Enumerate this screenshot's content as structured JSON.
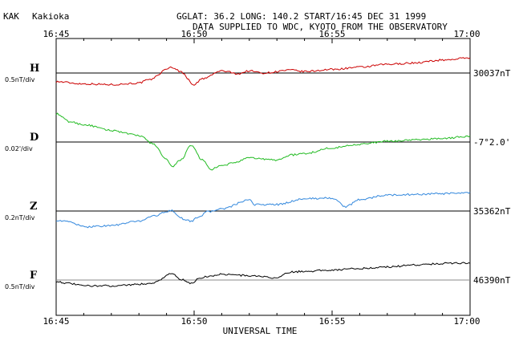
{
  "header": {
    "station_code": "KAK",
    "station_name": "Kakioka",
    "coords_line": "GGLAT:  36.2 LONG: 140.2 START/16:45 DEC 31 1999",
    "source_line": "DATA SUPPLIED TO WDC, KYOTO FROM THE OBSERVATORY"
  },
  "chart_data": {
    "type": "line",
    "xlabel": "UNIVERSAL TIME",
    "x_ticks": [
      "16:45",
      "16:50",
      "16:55",
      "17:00"
    ],
    "xlim_minutes": [
      0,
      15
    ],
    "grid": false,
    "series": [
      {
        "name": "H",
        "scale_label": "0.5nT/div",
        "baseline_label": "30037nT",
        "color": "#cc0000",
        "t": [
          0,
          1,
          2,
          3,
          3.3,
          4.2,
          4.5,
          5,
          5.3,
          6,
          6.6,
          7,
          7.5,
          8.5,
          9,
          10,
          11,
          12,
          13,
          14,
          15
        ],
        "y": [
          -1.2,
          -1.5,
          -1.6,
          -1.4,
          -1.0,
          0.8,
          0.2,
          -1.6,
          -0.8,
          0.3,
          -0.1,
          0.3,
          0.0,
          0.4,
          0.2,
          0.5,
          0.8,
          1.2,
          1.4,
          1.8,
          2.1
        ]
      },
      {
        "name": "D",
        "scale_label": "0.02'/div",
        "baseline_label": "-7°2.0'",
        "color": "#22bb22",
        "t": [
          0,
          0.5,
          1,
          2,
          3,
          3.5,
          4,
          4.2,
          4.5,
          4.9,
          5.3,
          5.6,
          6,
          6.5,
          7,
          8,
          8.5,
          9,
          10,
          11,
          12,
          13,
          14,
          15
        ],
        "y": [
          3.9,
          2.8,
          2.4,
          1.6,
          0.9,
          -0.2,
          -2.4,
          -3.5,
          -2.5,
          -0.5,
          -2.5,
          -3.8,
          -3.3,
          -2.8,
          -2.2,
          -2.5,
          -1.8,
          -1.6,
          -0.8,
          -0.3,
          0.1,
          0.3,
          0.5,
          0.8
        ]
      },
      {
        "name": "Z",
        "scale_label": "0.2nT/div",
        "baseline_label": "35362nT",
        "color": "#3388dd",
        "t": [
          0,
          0.5,
          1,
          1.5,
          2,
          3,
          3.5,
          4.2,
          4.5,
          4.9,
          5.2,
          5.5,
          6,
          7,
          7.2,
          8,
          9,
          10,
          10.5,
          11,
          12,
          13,
          14,
          15
        ],
        "y": [
          -1.3,
          -1.5,
          -2.2,
          -2.1,
          -2.0,
          -1.4,
          -0.7,
          0.1,
          -1.0,
          -1.4,
          -0.7,
          -0.1,
          0.3,
          1.5,
          0.9,
          0.9,
          1.7,
          1.8,
          0.6,
          1.6,
          2.2,
          2.3,
          2.4,
          2.5
        ]
      },
      {
        "name": "F",
        "scale_label": "0.5nT/div",
        "baseline_label": "46390nT",
        "color": "#000000",
        "t": [
          0,
          0.5,
          1,
          2,
          3,
          3.5,
          4.2,
          4.5,
          4.9,
          5.2,
          5.5,
          6,
          7,
          8,
          8.5,
          9,
          10,
          11,
          12,
          13,
          14,
          15
        ],
        "y": [
          -0.2,
          -0.5,
          -0.8,
          -0.8,
          -0.6,
          -0.4,
          0.9,
          0.1,
          -0.5,
          0.3,
          0.5,
          0.8,
          0.6,
          0.3,
          1.1,
          1.2,
          1.4,
          1.6,
          1.8,
          2.1,
          2.3,
          2.4
        ]
      }
    ]
  }
}
